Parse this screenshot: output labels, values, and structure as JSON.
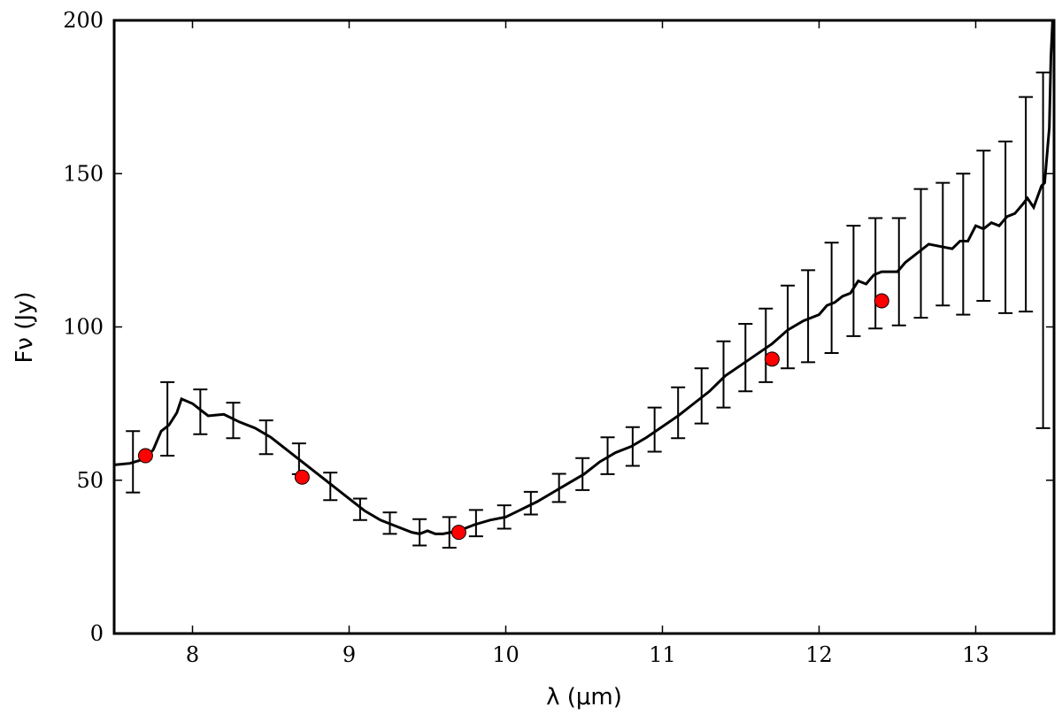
{
  "chart_data": {
    "type": "line",
    "xlabel": "λ (μm)",
    "ylabel": "Fν (Jy)",
    "xlim": [
      7.5,
      13.5
    ],
    "ylim": [
      0,
      200
    ],
    "xticks": [
      8,
      9,
      10,
      11,
      12,
      13
    ],
    "yticks": [
      0,
      50,
      100,
      150,
      200
    ],
    "grid": false,
    "series": [
      {
        "type": "line",
        "color": "#000000",
        "x": [
          7.5,
          7.6,
          7.7,
          7.75,
          7.8,
          7.85,
          7.9,
          7.93,
          8.0,
          8.05,
          8.1,
          8.2,
          8.3,
          8.4,
          8.5,
          8.6,
          8.7,
          8.8,
          8.9,
          9.0,
          9.1,
          9.2,
          9.3,
          9.4,
          9.45,
          9.5,
          9.55,
          9.6,
          9.7,
          9.8,
          9.9,
          10.0,
          10.1,
          10.2,
          10.3,
          10.4,
          10.5,
          10.6,
          10.7,
          10.8,
          10.9,
          11.0,
          11.1,
          11.2,
          11.3,
          11.4,
          11.5,
          11.6,
          11.7,
          11.8,
          11.9,
          12.0,
          12.05,
          12.1,
          12.15,
          12.2,
          12.25,
          12.3,
          12.35,
          12.4,
          12.5,
          12.55,
          12.6,
          12.65,
          12.7,
          12.8,
          12.85,
          12.9,
          12.95,
          13.0,
          13.05,
          13.1,
          13.15,
          13.2,
          13.25,
          13.3,
          13.33,
          13.37,
          13.42,
          13.44,
          13.47,
          13.48,
          13.5
        ],
        "values": [
          55,
          55.5,
          57,
          60,
          66,
          68,
          72,
          76.5,
          75,
          73,
          71,
          71.5,
          69,
          67,
          64,
          60,
          56,
          52,
          48,
          44,
          40,
          37,
          35,
          33,
          32.5,
          33.5,
          32.5,
          32.5,
          33.5,
          35.5,
          37,
          38,
          40.5,
          43,
          46,
          49,
          52,
          56,
          59,
          61,
          64,
          67.5,
          71,
          75,
          79,
          84,
          87.5,
          91,
          94.5,
          99,
          102,
          104,
          107,
          108,
          110,
          111,
          115,
          114,
          117,
          118,
          118,
          121,
          123,
          125,
          127,
          126,
          125.5,
          128,
          128,
          133,
          132,
          134,
          133,
          136,
          137,
          140,
          142,
          139,
          146,
          147,
          165,
          188,
          210
        ]
      },
      {
        "type": "errorbar",
        "color": "#000000",
        "x": [
          7.62,
          7.84,
          8.05,
          8.26,
          8.47,
          8.68,
          8.88,
          9.07,
          9.26,
          9.45,
          9.64,
          9.81,
          9.99,
          10.16,
          10.34,
          10.49,
          10.65,
          10.81,
          10.95,
          11.1,
          11.25,
          11.39,
          11.53,
          11.66,
          11.8,
          11.93,
          12.08,
          12.22,
          12.36,
          12.51,
          12.65,
          12.79,
          12.92,
          13.05,
          13.19,
          13.32,
          13.43
        ],
        "values": [
          56,
          70,
          72.3,
          69.5,
          64,
          57,
          48,
          40.5,
          36,
          33,
          33,
          36,
          38,
          42.5,
          47.5,
          52,
          58,
          61,
          66.5,
          72,
          77.5,
          84.5,
          90,
          94,
          100,
          103.5,
          109.5,
          115,
          117.5,
          118,
          124,
          127,
          127,
          133,
          132.5,
          140,
          125
        ],
        "errors": [
          10,
          12,
          7.3,
          5.8,
          5.5,
          5,
          4.5,
          3.5,
          3.5,
          4.3,
          5,
          4.3,
          3.8,
          3.7,
          4.6,
          5.2,
          6,
          6.3,
          7.2,
          8.3,
          9,
          10.8,
          11,
          12,
          13.5,
          15,
          18,
          18,
          18,
          17.5,
          21,
          20,
          23,
          24.5,
          28,
          35,
          58
        ]
      },
      {
        "type": "scatter",
        "color": "#ff0000",
        "x": [
          7.7,
          8.7,
          9.7,
          11.7,
          12.4
        ],
        "values": [
          58,
          51,
          33,
          89.5,
          108.5
        ]
      }
    ]
  }
}
